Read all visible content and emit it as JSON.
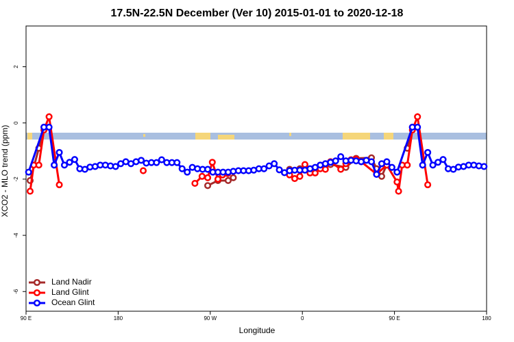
{
  "chart_data": {
    "type": "line",
    "title": "17.5N-22.5N December (Ver 10)   2015-01-01 to 2020-12-18",
    "x_label": "Longitude",
    "y_label": "XCO2 - MLO trend (ppm)",
    "xlim": [
      90,
      540
    ],
    "ylim": [
      -6.7,
      3.45
    ],
    "xticks": [
      {
        "value": 90,
        "label": "90 E"
      },
      {
        "value": 180,
        "label": "180"
      },
      {
        "value": 270,
        "label": "90 W"
      },
      {
        "value": 360,
        "label": "0"
      },
      {
        "value": 450,
        "label": "90 E"
      },
      {
        "value": 540,
        "label": "180"
      }
    ],
    "yticks": [
      2,
      0,
      -2,
      -4,
      -6
    ],
    "grid": false,
    "legend": "bottom-left",
    "series": [
      {
        "name": "Land Nadir",
        "color": "#a52a2a",
        "x": [
          94,
          102.5,
          107.5,
          null,
          267.5,
          277.5,
          287.5,
          292.5,
          null,
          347.5,
          357.5,
          377.5,
          387.5,
          402.5,
          412.5,
          427.5,
          432.5,
          437.5,
          442.5,
          null,
          462.5,
          467.5
        ],
        "values": [
          -2.05,
          -0.9,
          -0.15,
          null,
          -2.23,
          -2.05,
          -2.05,
          -1.95,
          null,
          -1.65,
          -1.63,
          -1.5,
          -1.48,
          -1.58,
          -1.26,
          -1.24,
          -1.63,
          -1.9,
          -1.48,
          null,
          -0.9,
          -0.15
        ]
      },
      {
        "name": "Land Glint",
        "color": "#ff0000",
        "x": [
          94,
          97.5,
          102.5,
          107.5,
          112.5,
          122.5,
          null,
          204.5,
          null,
          255,
          262,
          267.5,
          272,
          277.5,
          282,
          287,
          null,
          347.5,
          352.5,
          357.5,
          362.5,
          367.5,
          372.5,
          377.5,
          382.5,
          387.5,
          397.5,
          402.5,
          407.5,
          412.5,
          417.5,
          432.5,
          442.5,
          452.5,
          454,
          457.5,
          462.5,
          467.5,
          472.5,
          482.5
        ],
        "values": [
          -2.43,
          -1.5,
          -1.5,
          -0.25,
          0.22,
          -2.2,
          null,
          -1.7,
          null,
          -2.15,
          -1.9,
          -1.95,
          -1.4,
          -2.0,
          -1.85,
          -1.8,
          null,
          -1.85,
          -1.98,
          -1.9,
          -1.48,
          -1.78,
          -1.78,
          -1.63,
          -1.65,
          -1.38,
          -1.65,
          -1.45,
          -1.31,
          -1.29,
          -1.38,
          -1.82,
          -1.5,
          -2.1,
          -2.43,
          -1.5,
          -1.5,
          -0.25,
          0.22,
          -2.2
        ]
      },
      {
        "name": "Ocean Glint",
        "color": "#0000ff",
        "x": [
          92.5,
          107.5,
          112.5,
          117.5,
          122.5,
          127.5,
          132.5,
          137.5,
          142.5,
          147.5,
          152.5,
          157.5,
          162.5,
          167.5,
          172.5,
          177.5,
          182.5,
          187.5,
          192.5,
          197.5,
          202.5,
          207.5,
          212.5,
          217.5,
          222.5,
          227.5,
          232.5,
          237.5,
          242.5,
          247.5,
          252.5,
          257.5,
          262.5,
          267.5,
          272.5,
          277.5,
          282.5,
          287.5,
          292.5,
          297.5,
          302.5,
          307.5,
          312.5,
          317.5,
          322.5,
          327.5,
          332.5,
          337.5,
          342.5,
          347.5,
          352.5,
          357.5,
          362.5,
          367.5,
          372.5,
          377.5,
          382.5,
          387.5,
          392.5,
          397.5,
          402.5,
          407.5,
          412.5,
          417.5,
          422.5,
          427.5,
          432.5,
          437.5,
          442.5,
          447.5,
          452.5,
          467.5,
          472.5,
          477.5,
          482.5,
          487.5,
          492.5,
          497.5,
          502.5,
          507.5,
          512.5,
          517.5,
          522.5,
          527.5,
          532.5,
          537.5
        ],
        "values": [
          -1.75,
          -0.15,
          -0.15,
          -1.5,
          -1.05,
          -1.5,
          -1.4,
          -1.3,
          -1.63,
          -1.65,
          -1.57,
          -1.55,
          -1.5,
          -1.5,
          -1.53,
          -1.55,
          -1.45,
          -1.38,
          -1.45,
          -1.38,
          -1.33,
          -1.43,
          -1.41,
          -1.41,
          -1.31,
          -1.41,
          -1.41,
          -1.41,
          -1.63,
          -1.75,
          -1.58,
          -1.63,
          -1.65,
          -1.65,
          -1.75,
          -1.75,
          -1.75,
          -1.75,
          -1.72,
          -1.7,
          -1.7,
          -1.7,
          -1.68,
          -1.63,
          -1.63,
          -1.53,
          -1.45,
          -1.67,
          -1.77,
          -1.7,
          -1.68,
          -1.68,
          -1.68,
          -1.63,
          -1.58,
          -1.5,
          -1.45,
          -1.4,
          -1.35,
          -1.2,
          -1.35,
          -1.33,
          -1.35,
          -1.38,
          -1.33,
          -1.38,
          -1.83,
          -1.45,
          -1.38,
          -1.58,
          -1.75,
          -0.15,
          -0.15,
          -1.5,
          -1.05,
          -1.5,
          -1.4,
          -1.3,
          -1.63,
          -1.65,
          -1.57,
          -1.55,
          -1.5,
          -1.5,
          -1.53,
          -1.55
        ]
      }
    ]
  }
}
